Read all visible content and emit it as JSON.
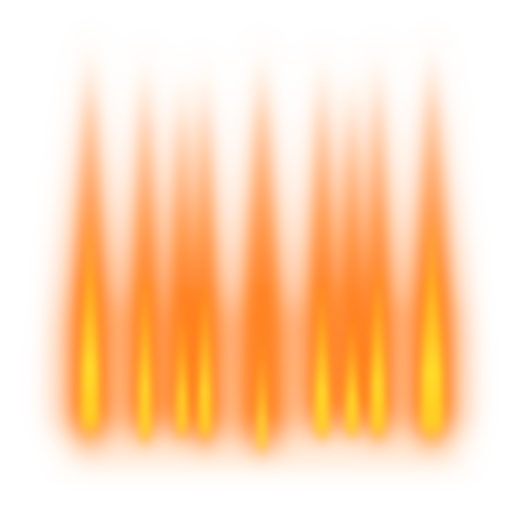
{
  "scene": {
    "subject": "fire-streaks",
    "background_color": "#ffffff",
    "colors": {
      "glow": "#ff9a4a",
      "body": "#ff7d1a",
      "core": "#ffd21f",
      "hot_core": "#ffe84a"
    },
    "flames": [
      {
        "name": "flame-1"
      },
      {
        "name": "flame-2"
      },
      {
        "name": "flame-3"
      },
      {
        "name": "flame-4"
      },
      {
        "name": "flame-5"
      },
      {
        "name": "flame-6"
      },
      {
        "name": "flame-7"
      },
      {
        "name": "flame-8"
      },
      {
        "name": "flame-9"
      }
    ]
  }
}
